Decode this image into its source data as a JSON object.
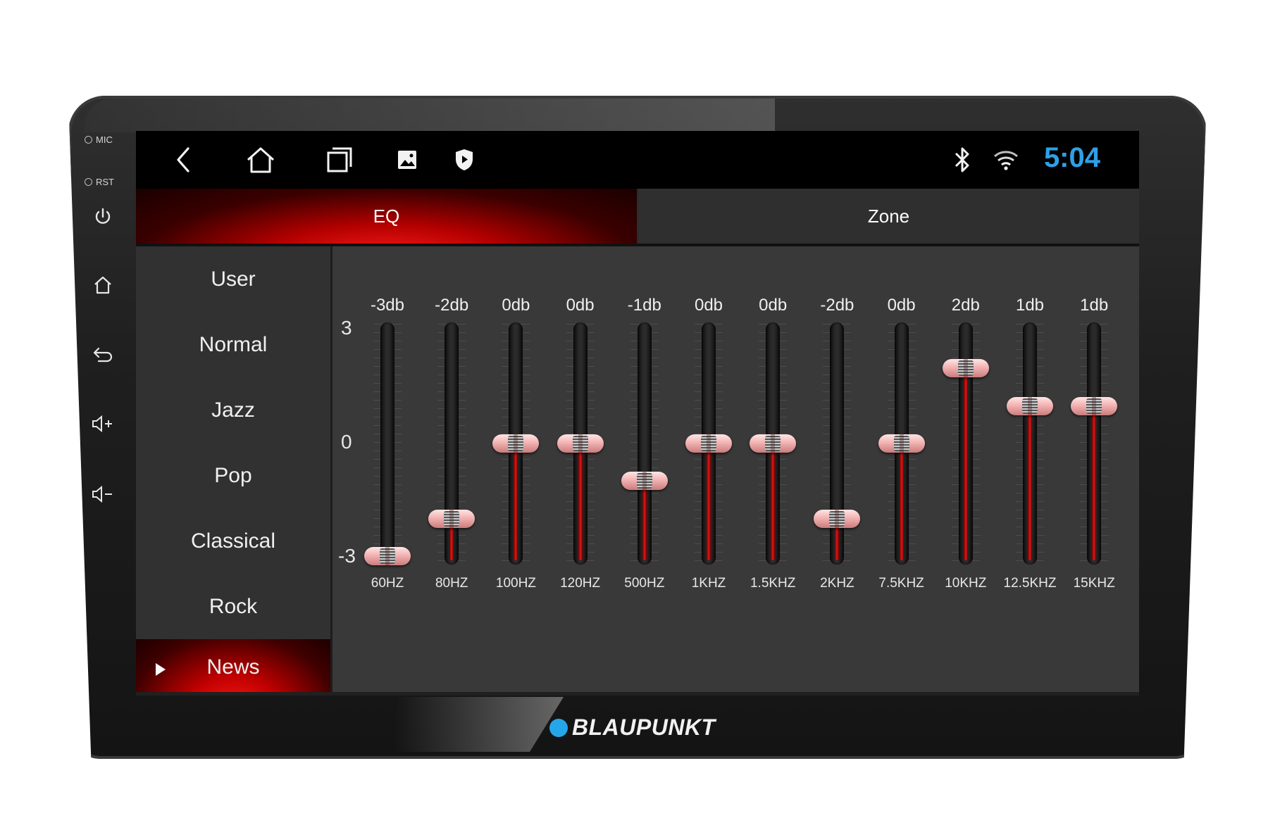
{
  "device": {
    "side_labels": [
      "MIC",
      "RST"
    ],
    "side_buttons": [
      "power-icon",
      "home-icon",
      "back-icon",
      "volume-up-icon",
      "volume-down-icon"
    ],
    "brand": "BLAUPUNKT",
    "brand_color": "#25a6e8"
  },
  "statusbar": {
    "nav_icons": [
      "back-arrow-icon",
      "home-icon",
      "recent-apps-icon",
      "gallery-icon",
      "shield-icon"
    ],
    "status_icons": [
      "bluetooth-icon",
      "wifi-icon"
    ],
    "time": "5:04",
    "time_color": "#2ea0e6"
  },
  "tabs": [
    {
      "label": "EQ",
      "active": true
    },
    {
      "label": "Zone",
      "active": false
    }
  ],
  "presets": [
    {
      "label": "User",
      "active": false
    },
    {
      "label": "Normal",
      "active": false
    },
    {
      "label": "Jazz",
      "active": false
    },
    {
      "label": "Pop",
      "active": false
    },
    {
      "label": "Classical",
      "active": false
    },
    {
      "label": "Rock",
      "active": false
    },
    {
      "label": "News",
      "active": true
    }
  ],
  "eq": {
    "scale": {
      "max": "3",
      "mid": "0",
      "min": "-3"
    },
    "range": [
      -3,
      3
    ],
    "bands": [
      {
        "freq": "60HZ",
        "db_label": "-3db",
        "value": -3
      },
      {
        "freq": "80HZ",
        "db_label": "-2db",
        "value": -2
      },
      {
        "freq": "100HZ",
        "db_label": "0db",
        "value": 0
      },
      {
        "freq": "120HZ",
        "db_label": "0db",
        "value": 0
      },
      {
        "freq": "500HZ",
        "db_label": "-1db",
        "value": -1
      },
      {
        "freq": "1KHZ",
        "db_label": "0db",
        "value": 0
      },
      {
        "freq": "1.5KHZ",
        "db_label": "0db",
        "value": 0
      },
      {
        "freq": "2KHZ",
        "db_label": "-2db",
        "value": -2
      },
      {
        "freq": "7.5KHZ",
        "db_label": "0db",
        "value": 0
      },
      {
        "freq": "10KHZ",
        "db_label": "2db",
        "value": 2
      },
      {
        "freq": "12.5KHZ",
        "db_label": "1db",
        "value": 1
      },
      {
        "freq": "15KHZ",
        "db_label": "1db",
        "value": 1
      }
    ],
    "accent_color": "#e01818"
  }
}
